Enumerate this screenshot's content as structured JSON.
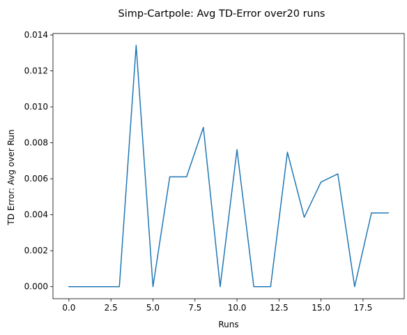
{
  "chart_data": {
    "type": "line",
    "title": "Simp-Cartpole: Avg TD-Error over20 runs",
    "xlabel": "Runs",
    "ylabel": "TD Error: Avg over Run",
    "xlim": [
      -0.95,
      19.95
    ],
    "ylim": [
      -0.00067,
      0.01408
    ],
    "x_ticks": [
      0.0,
      2.5,
      5.0,
      7.5,
      10.0,
      12.5,
      15.0,
      17.5
    ],
    "x_tick_labels": [
      "0.0",
      "2.5",
      "5.0",
      "7.5",
      "10.0",
      "12.5",
      "15.0",
      "17.5"
    ],
    "y_ticks": [
      0.0,
      0.002,
      0.004,
      0.006,
      0.008,
      0.01,
      0.012,
      0.014
    ],
    "y_tick_labels": [
      "0.000",
      "0.002",
      "0.004",
      "0.006",
      "0.008",
      "0.010",
      "0.012",
      "0.014"
    ],
    "grid": false,
    "color": "#1f77b4",
    "series": [
      {
        "x": [
          0,
          1,
          2,
          3,
          4,
          5,
          6,
          7,
          8,
          9,
          10,
          11,
          12,
          13,
          14,
          15,
          16,
          17,
          18,
          19
        ],
        "values": [
          0.0,
          0.0,
          0.0,
          0.0,
          0.01342,
          0.0,
          0.00611,
          0.00611,
          0.00886,
          0.0,
          0.00762,
          0.0,
          0.0,
          0.00748,
          0.00386,
          0.00582,
          0.00627,
          0.0,
          0.0041,
          0.0041
        ]
      }
    ]
  }
}
